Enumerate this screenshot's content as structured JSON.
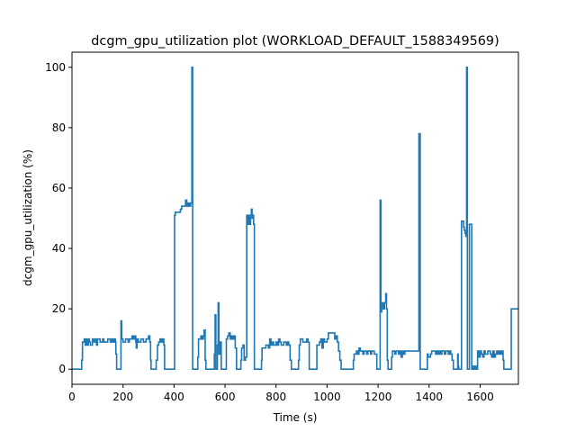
{
  "chart_data": {
    "type": "line",
    "title": "dcgm_gpu_utilization plot (WORKLOAD_DEFAULT_1588349569)",
    "xlabel": "Time (s)",
    "ylabel": "dcgm_gpu_utilization (%)",
    "xlim": [
      0,
      1750
    ],
    "ylim": [
      -5,
      105
    ],
    "xticks": [
      0,
      200,
      400,
      600,
      800,
      1000,
      1200,
      1400,
      1600
    ],
    "yticks": [
      0,
      20,
      40,
      60,
      80,
      100
    ],
    "grid": false,
    "line_color": "#1f77b4",
    "series": [
      {
        "name": "dcgm_gpu_utilization",
        "step": true,
        "points": [
          [
            0,
            0
          ],
          [
            35,
            0
          ],
          [
            38,
            3
          ],
          [
            41,
            9
          ],
          [
            48,
            10
          ],
          [
            52,
            8
          ],
          [
            56,
            10
          ],
          [
            60,
            8
          ],
          [
            64,
            10
          ],
          [
            68,
            9
          ],
          [
            72,
            8
          ],
          [
            80,
            10
          ],
          [
            86,
            9
          ],
          [
            92,
            10
          ],
          [
            96,
            8
          ],
          [
            100,
            10
          ],
          [
            110,
            9
          ],
          [
            120,
            10
          ],
          [
            125,
            9
          ],
          [
            140,
            10
          ],
          [
            150,
            9
          ],
          [
            155,
            10
          ],
          [
            160,
            9
          ],
          [
            165,
            10
          ],
          [
            170,
            9
          ],
          [
            172,
            5
          ],
          [
            175,
            0
          ],
          [
            190,
            0
          ],
          [
            192,
            16
          ],
          [
            195,
            10
          ],
          [
            200,
            9
          ],
          [
            210,
            10
          ],
          [
            220,
            9
          ],
          [
            225,
            10
          ],
          [
            235,
            11
          ],
          [
            240,
            10
          ],
          [
            245,
            11
          ],
          [
            250,
            9
          ],
          [
            252,
            7
          ],
          [
            255,
            10
          ],
          [
            260,
            9
          ],
          [
            270,
            10
          ],
          [
            280,
            9
          ],
          [
            290,
            10
          ],
          [
            300,
            11
          ],
          [
            305,
            9
          ],
          [
            308,
            3
          ],
          [
            310,
            0
          ],
          [
            325,
            0
          ],
          [
            330,
            3
          ],
          [
            335,
            8
          ],
          [
            340,
            9
          ],
          [
            345,
            10
          ],
          [
            350,
            9
          ],
          [
            355,
            10
          ],
          [
            360,
            8
          ],
          [
            363,
            0
          ],
          [
            400,
            0
          ],
          [
            402,
            51
          ],
          [
            405,
            52
          ],
          [
            425,
            53
          ],
          [
            430,
            54
          ],
          [
            445,
            56
          ],
          [
            450,
            54
          ],
          [
            455,
            55
          ],
          [
            460,
            54
          ],
          [
            465,
            55
          ],
          [
            470,
            100
          ],
          [
            473,
            0
          ],
          [
            490,
            0
          ],
          [
            493,
            4
          ],
          [
            496,
            10
          ],
          [
            505,
            11
          ],
          [
            510,
            10
          ],
          [
            515,
            11
          ],
          [
            518,
            13
          ],
          [
            522,
            3
          ],
          [
            525,
            0
          ],
          [
            555,
            0
          ],
          [
            558,
            5
          ],
          [
            561,
            18
          ],
          [
            564,
            0
          ],
          [
            568,
            0
          ],
          [
            570,
            8
          ],
          [
            573,
            22
          ],
          [
            576,
            5
          ],
          [
            580,
            9
          ],
          [
            585,
            0
          ],
          [
            600,
            0
          ],
          [
            605,
            10
          ],
          [
            610,
            11
          ],
          [
            615,
            12
          ],
          [
            620,
            10
          ],
          [
            625,
            11
          ],
          [
            630,
            10
          ],
          [
            635,
            11
          ],
          [
            640,
            7
          ],
          [
            645,
            0
          ],
          [
            660,
            0
          ],
          [
            662,
            3
          ],
          [
            665,
            7
          ],
          [
            670,
            8
          ],
          [
            675,
            3
          ],
          [
            680,
            4
          ],
          [
            685,
            51
          ],
          [
            690,
            48
          ],
          [
            692,
            51
          ],
          [
            697,
            48
          ],
          [
            700,
            51
          ],
          [
            703,
            53
          ],
          [
            706,
            50
          ],
          [
            709,
            51
          ],
          [
            712,
            48
          ],
          [
            715,
            0
          ],
          [
            740,
            0
          ],
          [
            743,
            3
          ],
          [
            745,
            7
          ],
          [
            760,
            8
          ],
          [
            770,
            7
          ],
          [
            775,
            10
          ],
          [
            780,
            8
          ],
          [
            785,
            9
          ],
          [
            790,
            8
          ],
          [
            800,
            9
          ],
          [
            805,
            8
          ],
          [
            810,
            10
          ],
          [
            815,
            9
          ],
          [
            820,
            8
          ],
          [
            830,
            9
          ],
          [
            840,
            8
          ],
          [
            845,
            9
          ],
          [
            850,
            8
          ],
          [
            855,
            3
          ],
          [
            860,
            0
          ],
          [
            885,
            0
          ],
          [
            888,
            3
          ],
          [
            891,
            8
          ],
          [
            895,
            10
          ],
          [
            905,
            9
          ],
          [
            920,
            10
          ],
          [
            925,
            9
          ],
          [
            930,
            0
          ],
          [
            955,
            0
          ],
          [
            960,
            8
          ],
          [
            970,
            9
          ],
          [
            975,
            10
          ],
          [
            980,
            7
          ],
          [
            985,
            10
          ],
          [
            990,
            9
          ],
          [
            1000,
            10
          ],
          [
            1005,
            12
          ],
          [
            1030,
            10
          ],
          [
            1035,
            11
          ],
          [
            1040,
            9
          ],
          [
            1045,
            6
          ],
          [
            1050,
            3
          ],
          [
            1055,
            0
          ],
          [
            1100,
            0
          ],
          [
            1103,
            3
          ],
          [
            1106,
            5
          ],
          [
            1115,
            6
          ],
          [
            1120,
            5
          ],
          [
            1125,
            7
          ],
          [
            1130,
            6
          ],
          [
            1140,
            5
          ],
          [
            1145,
            6
          ],
          [
            1155,
            5
          ],
          [
            1160,
            6
          ],
          [
            1170,
            5
          ],
          [
            1175,
            6
          ],
          [
            1185,
            5
          ],
          [
            1195,
            0
          ],
          [
            1205,
            0
          ],
          [
            1208,
            56
          ],
          [
            1211,
            19
          ],
          [
            1214,
            22
          ],
          [
            1220,
            20
          ],
          [
            1225,
            22
          ],
          [
            1230,
            25
          ],
          [
            1233,
            20
          ],
          [
            1236,
            3
          ],
          [
            1239,
            0
          ],
          [
            1250,
            0
          ],
          [
            1253,
            4
          ],
          [
            1256,
            6
          ],
          [
            1265,
            5
          ],
          [
            1270,
            6
          ],
          [
            1280,
            5
          ],
          [
            1285,
            6
          ],
          [
            1290,
            4
          ],
          [
            1295,
            6
          ],
          [
            1300,
            5
          ],
          [
            1305,
            6
          ],
          [
            1355,
            6
          ],
          [
            1360,
            78
          ],
          [
            1365,
            0
          ],
          [
            1390,
            0
          ],
          [
            1393,
            5
          ],
          [
            1396,
            4
          ],
          [
            1405,
            5
          ],
          [
            1410,
            6
          ],
          [
            1425,
            5
          ],
          [
            1430,
            6
          ],
          [
            1435,
            5
          ],
          [
            1440,
            6
          ],
          [
            1445,
            5
          ],
          [
            1450,
            6
          ],
          [
            1460,
            5
          ],
          [
            1465,
            6
          ],
          [
            1475,
            5
          ],
          [
            1480,
            6
          ],
          [
            1485,
            5
          ],
          [
            1490,
            3
          ],
          [
            1495,
            0
          ],
          [
            1510,
            0
          ],
          [
            1512,
            5
          ],
          [
            1514,
            1
          ],
          [
            1516,
            0
          ],
          [
            1524,
            0
          ],
          [
            1527,
            49
          ],
          [
            1535,
            47
          ],
          [
            1538,
            46
          ],
          [
            1541,
            45
          ],
          [
            1544,
            44
          ],
          [
            1547,
            100
          ],
          [
            1550,
            0
          ],
          [
            1555,
            0
          ],
          [
            1558,
            48
          ],
          [
            1565,
            48
          ],
          [
            1567,
            0
          ],
          [
            1570,
            1
          ],
          [
            1575,
            0
          ],
          [
            1580,
            1
          ],
          [
            1585,
            0
          ],
          [
            1590,
            6
          ],
          [
            1595,
            4
          ],
          [
            1600,
            6
          ],
          [
            1605,
            5
          ],
          [
            1610,
            4
          ],
          [
            1615,
            6
          ],
          [
            1620,
            5
          ],
          [
            1630,
            6
          ],
          [
            1640,
            5
          ],
          [
            1645,
            4
          ],
          [
            1650,
            6
          ],
          [
            1655,
            4
          ],
          [
            1660,
            5
          ],
          [
            1665,
            6
          ],
          [
            1670,
            5
          ],
          [
            1675,
            6
          ],
          [
            1680,
            5
          ],
          [
            1685,
            6
          ],
          [
            1690,
            3
          ],
          [
            1693,
            0
          ],
          [
            1720,
            0
          ],
          [
            1722,
            20
          ],
          [
            1750,
            20
          ]
        ]
      }
    ]
  }
}
